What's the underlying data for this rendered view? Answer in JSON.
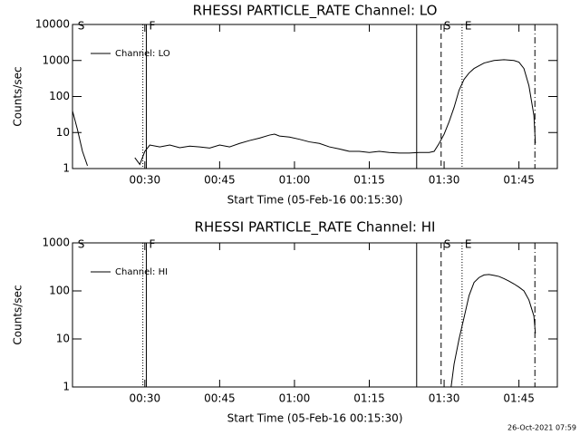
{
  "chart_data": [
    {
      "type": "line",
      "title": "RHESSI PARTICLE_RATE Channel: LO",
      "xlabel": "Start Time (05-Feb-16 00:15:30)",
      "ylabel": "Counts/sec",
      "log_y": true,
      "legend": "upper left",
      "x": [
        15.5,
        16.5,
        17.5,
        18.5,
        19.5,
        28,
        29,
        30,
        31,
        33,
        35,
        37,
        39,
        41,
        43,
        45,
        47,
        49,
        51,
        53,
        55,
        56,
        57,
        59,
        61,
        63,
        65,
        67,
        69,
        71,
        73,
        75,
        77,
        79,
        81,
        83,
        85,
        87,
        88,
        89,
        90,
        91,
        92,
        93,
        94,
        95,
        96,
        98,
        100,
        102,
        104,
        105,
        106,
        107,
        108,
        108.3
      ],
      "series": [
        {
          "name": "Channel: LO",
          "color": "#000000",
          "values": [
            40,
            12,
            3,
            1.2,
            null,
            2,
            1.3,
            3,
            4.5,
            4,
            4.5,
            3.8,
            4.2,
            4,
            3.7,
            4.5,
            4,
            5,
            6,
            7,
            8.5,
            9,
            8,
            7.5,
            6.5,
            5.5,
            5,
            4,
            3.5,
            3,
            3,
            2.8,
            3,
            2.8,
            2.7,
            2.7,
            2.8,
            2.8,
            3,
            5,
            9,
            20,
            50,
            150,
            300,
            450,
            600,
            850,
            1000,
            1050,
            1000,
            900,
            600,
            200,
            30,
            5
          ]
        }
      ],
      "xlim": [
        15.5,
        112.7
      ],
      "ylim": [
        1,
        10000
      ],
      "xticks": [
        {
          "value": 30,
          "label": "00:30"
        },
        {
          "value": 45,
          "label": "00:45"
        },
        {
          "value": 60,
          "label": "01:00"
        },
        {
          "value": 75,
          "label": "01:15"
        },
        {
          "value": 90,
          "label": "01:30"
        },
        {
          "value": 105,
          "label": "01:45"
        }
      ],
      "yticks": [
        1,
        10,
        100,
        1000,
        10000
      ],
      "vlines": [
        {
          "x": 29.6,
          "style": "dotted"
        },
        {
          "x": 30.3,
          "style": "solid"
        },
        {
          "x": 84.5,
          "style": "solid"
        },
        {
          "x": 89.4,
          "style": "dashed"
        },
        {
          "x": 93.6,
          "style": "dotted"
        },
        {
          "x": 108.2,
          "style": "dashdot"
        }
      ],
      "markers": [
        {
          "x": 16,
          "label": "S"
        },
        {
          "x": 30.3,
          "label": "F"
        },
        {
          "x": 89.4,
          "label": "S"
        },
        {
          "x": 93.6,
          "label": "E"
        }
      ]
    },
    {
      "type": "line",
      "title": "RHESSI PARTICLE_RATE Channel: HI",
      "xlabel": "Start Time (05-Feb-16 00:15:30)",
      "ylabel": "Counts/sec",
      "log_y": true,
      "legend": "upper left",
      "x": [
        91.4,
        92,
        93,
        94,
        95,
        96,
        97,
        98,
        99,
        100,
        101,
        102,
        103,
        104,
        105,
        106,
        107,
        108,
        108.3
      ],
      "series": [
        {
          "name": "Channel: HI",
          "color": "#000000",
          "values": [
            1,
            3,
            10,
            28,
            80,
            150,
            190,
            215,
            220,
            210,
            200,
            180,
            160,
            140,
            120,
            100,
            65,
            30,
            13
          ]
        }
      ],
      "xlim": [
        15.5,
        112.7
      ],
      "ylim": [
        1,
        1000
      ],
      "xticks": [
        {
          "value": 30,
          "label": "00:30"
        },
        {
          "value": 45,
          "label": "00:45"
        },
        {
          "value": 60,
          "label": "01:00"
        },
        {
          "value": 75,
          "label": "01:15"
        },
        {
          "value": 90,
          "label": "01:30"
        },
        {
          "value": 105,
          "label": "01:45"
        }
      ],
      "yticks": [
        1,
        10,
        100,
        1000
      ],
      "vlines": [
        {
          "x": 29.6,
          "style": "dotted"
        },
        {
          "x": 30.3,
          "style": "solid"
        },
        {
          "x": 84.5,
          "style": "solid"
        },
        {
          "x": 89.4,
          "style": "dashed"
        },
        {
          "x": 93.6,
          "style": "dotted"
        },
        {
          "x": 108.2,
          "style": "dashdot"
        }
      ],
      "markers": [
        {
          "x": 16,
          "label": "S"
        },
        {
          "x": 30.3,
          "label": "F"
        },
        {
          "x": 89.4,
          "label": "S"
        },
        {
          "x": 93.6,
          "label": "E"
        }
      ]
    }
  ],
  "footer": "26-Oct-2021 07:59"
}
